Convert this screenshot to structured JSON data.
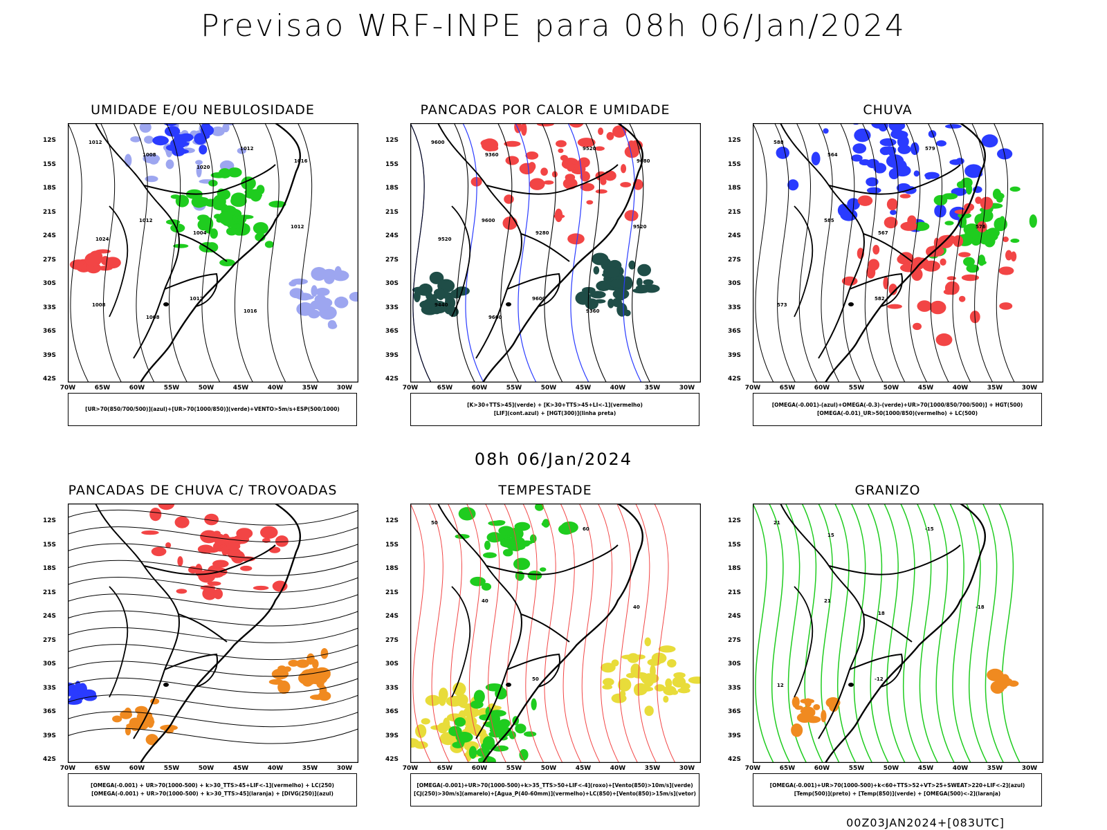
{
  "page": {
    "title": "Previsao WRF-INPE  para 08h 06/Jan/2024",
    "subtitle": "08h 06/Jan/2024",
    "run": "00Z03JAN2024+[083UTC]"
  },
  "axes": {
    "lat_ticks": [
      "12S",
      "15S",
      "18S",
      "21S",
      "24S",
      "27S",
      "30S",
      "33S",
      "36S",
      "39S",
      "42S"
    ],
    "lon_ticks": [
      "70W",
      "65W",
      "60W",
      "55W",
      "50W",
      "45W",
      "40W",
      "35W",
      "30W"
    ]
  },
  "colors": {
    "blue": "#2a3bff",
    "lightblue": "#9da6f0",
    "green": "#1fcc1f",
    "red": "#f24545",
    "darkteal": "#1f4d47",
    "yellow": "#e8dc3a",
    "orange": "#f08a20"
  },
  "chart_data": [
    {
      "type": "map",
      "title": "UMIDADE E/OU NEBULOSIDADE",
      "legend": [
        "[UR>70(850/700/500)](azul)+[UR>70(1000/850)](verde)+VENTO>5m/s+ESP(500/1000)"
      ],
      "contour_labels": [
        "1012",
        "1012",
        "1012",
        "1012",
        "1012",
        "1008",
        "1008",
        "1004",
        "1016",
        "1016",
        "1024",
        "1008",
        "1020"
      ]
    },
    {
      "type": "map",
      "title": "PANCADAS POR CALOR E UMIDADE",
      "legend": [
        "[K>30+TTS>45](verde) + [K>30+TTS>45+LI<-1](vermelho)",
        "[LIF](cont.azul) + [HGT(300)](linha preta)"
      ],
      "contour_labels": [
        "9600",
        "9600",
        "9600",
        "9520",
        "9520",
        "9440",
        "9360",
        "9280",
        "9360",
        "9680",
        "9520",
        "9600"
      ]
    },
    {
      "type": "map",
      "title": "CHUVA",
      "legend": [
        "[OMEGA(-0.001)-(azul)+OMEGA(-0.3)-(verde)+UR>70(1000/850/700/500)] + HGT(500)",
        "[OMEGA(-0.01)_UR>50(1000/850)(vermelho) + LC(500)"
      ],
      "contour_labels": [
        "588",
        "585",
        "582",
        "579",
        "576",
        "573",
        "564",
        "567"
      ]
    },
    {
      "type": "map",
      "title": "PANCADAS DE CHUVA C/ TROVOADAS",
      "legend": [
        "[OMEGA(-0.001) + UR>70(1000-500) + k>30_TTS>45+LIF<-1](vermelho) + LC(250)",
        "[OMEGA(-0.001) + UR>70(1000-500) + k>30_TTS>45](laranja) + [DIVG(250)](azul)"
      ],
      "contour_labels": []
    },
    {
      "type": "map",
      "title": "TEMPESTADE",
      "legend": [
        "[OMEGA(-0.001)+UR>70(1000-500)+k>35_TTS>50+LIF<-4](roxo)+[Vento(850)>10m/s](verde)",
        "[CJ(250)>30m/s](amarelo)+[Agua_P(40-60mm)](vermelho)+LC(850)+[Vento(850)>15m/s](vetor)"
      ],
      "contour_labels": [
        "50",
        "40",
        "50",
        "60",
        "40"
      ]
    },
    {
      "type": "map",
      "title": "GRANIZO",
      "legend": [
        "[OMEGA(-0.001)+UR>70(1000-500)+k<60+TTS>52+VT>25+SWEAT>220+LIF<-2](azul)",
        "[Temp(500)](preto) + [Temp(850)](verde) + [OMEGA(500)<-2](laranja)"
      ],
      "contour_labels": [
        "21",
        "21",
        "-12",
        "-15",
        "-18",
        "12",
        "15",
        "18"
      ]
    }
  ]
}
